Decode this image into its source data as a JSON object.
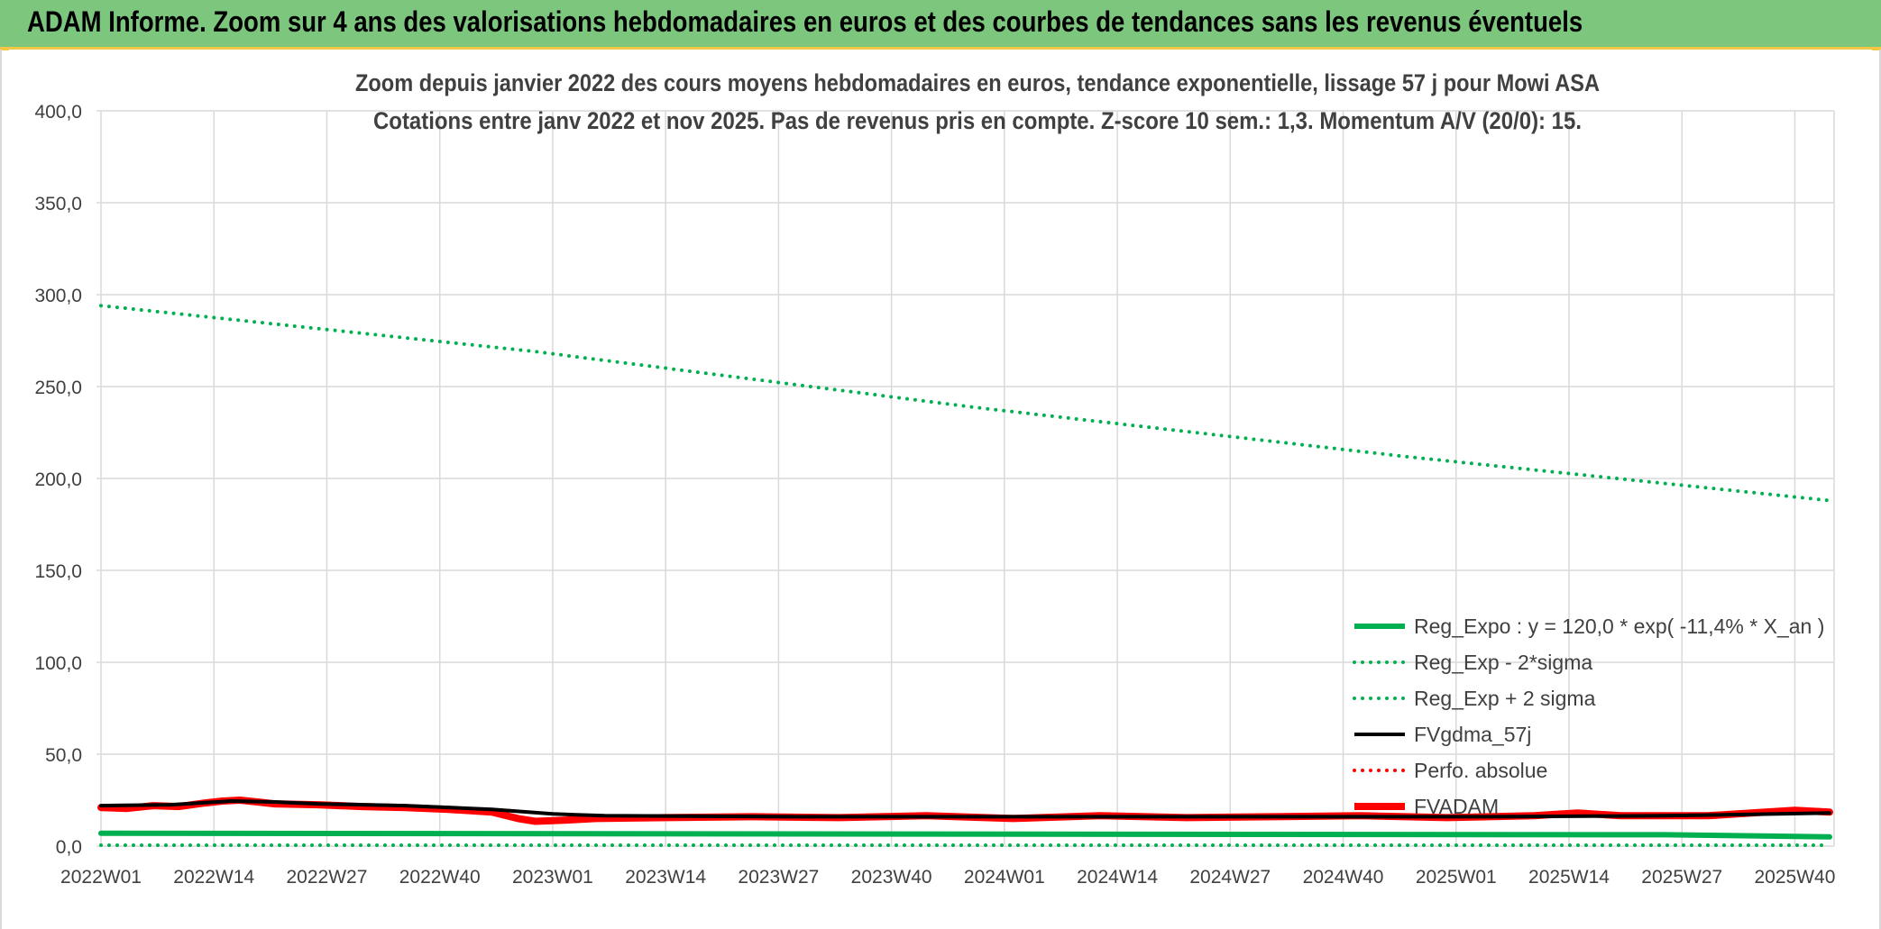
{
  "banner": {
    "title": "ADAM Informe. Zoom sur 4 ans des valorisations hebdomadaires en euros et des courbes de tendances sans les revenus éventuels"
  },
  "colors": {
    "banner_bg": "#7dc67e",
    "green": "#00b050",
    "black": "#000000",
    "red": "#ff0000",
    "grid": "#d9d9d9",
    "text": "#404040"
  },
  "chart_data": {
    "type": "line",
    "title": "Zoom depuis janvier 2022 des cours moyens hebdomadaires en euros, tendance exponentielle, lissage 57 j pour Mowi ASA",
    "subtitle": "Cotations entre janv 2022 et nov 2025. Pas de revenus pris en compte. Z-score 10 sem.: 1,3. Momentum A/V (20/0): 15.",
    "xlabel": "",
    "ylabel": "",
    "ylim": [
      0,
      400
    ],
    "yticks": [
      "0,0",
      "50,0",
      "100,0",
      "150,0",
      "200,0",
      "250,0",
      "300,0",
      "350,0",
      "400,0"
    ],
    "xtick_labels": [
      "2022W01",
      "2022W14",
      "2022W27",
      "2022W40",
      "2023W01",
      "2023W14",
      "2023W27",
      "2023W40",
      "2024W01",
      "2024W14",
      "2024W27",
      "2024W40",
      "2025W01",
      "2025W14",
      "2025W27",
      "2025W40"
    ],
    "n_weeks": 200,
    "legend_position": "bottom-right",
    "series": [
      {
        "name": "Reg_Expo : y = 120,0 * exp( -11,4% *  X_an )",
        "style": "solid",
        "color": "#00b050",
        "width": 6,
        "points": [
          [
            0,
            7.0
          ],
          [
            180,
            6.2
          ],
          [
            199,
            5.0
          ]
        ]
      },
      {
        "name": "Reg_Exp - 2*sigma",
        "style": "dotted",
        "color": "#00b050",
        "width": 4,
        "points": [
          [
            0,
            0.5
          ],
          [
            199,
            0.5
          ]
        ]
      },
      {
        "name": "Reg_Exp + 2 sigma",
        "style": "dotted",
        "color": "#00b050",
        "width": 4,
        "points": [
          [
            0,
            294
          ],
          [
            50,
            269
          ],
          [
            100,
            239
          ],
          [
            150,
            212
          ],
          [
            199,
            188
          ]
        ]
      },
      {
        "name": "FVgdma_57j",
        "style": "solid",
        "color": "#000000",
        "width": 4,
        "points": [
          [
            0,
            22
          ],
          [
            8,
            22.5
          ],
          [
            15,
            24.5
          ],
          [
            20,
            24
          ],
          [
            25,
            23
          ],
          [
            35,
            22
          ],
          [
            45,
            20
          ],
          [
            52,
            17.5
          ],
          [
            58,
            16.5
          ],
          [
            80,
            16
          ],
          [
            120,
            16
          ],
          [
            160,
            16
          ],
          [
            180,
            16.5
          ],
          [
            199,
            18
          ]
        ]
      },
      {
        "name": "Perfo. absolue",
        "style": "dotted",
        "color": "#ff0000",
        "width": 4,
        "points": []
      },
      {
        "name": "FVADAM",
        "style": "solid",
        "color": "#ff0000",
        "width": 8,
        "points": [
          [
            0,
            21
          ],
          [
            3,
            20.5
          ],
          [
            6,
            22
          ],
          [
            9,
            21.5
          ],
          [
            12,
            23.5
          ],
          [
            14,
            24.5
          ],
          [
            16,
            25
          ],
          [
            18,
            24
          ],
          [
            20,
            23
          ],
          [
            25,
            22.5
          ],
          [
            30,
            21.5
          ],
          [
            35,
            21
          ],
          [
            40,
            20
          ],
          [
            45,
            18.5
          ],
          [
            48,
            15
          ],
          [
            50,
            13.5
          ],
          [
            53,
            14
          ],
          [
            57,
            15
          ],
          [
            65,
            15.5
          ],
          [
            75,
            16
          ],
          [
            85,
            15.5
          ],
          [
            95,
            16.5
          ],
          [
            105,
            15
          ],
          [
            115,
            16.5
          ],
          [
            125,
            15.5
          ],
          [
            135,
            16
          ],
          [
            145,
            16.5
          ],
          [
            155,
            15.5
          ],
          [
            165,
            16.5
          ],
          [
            170,
            18
          ],
          [
            175,
            16.5
          ],
          [
            185,
            16.5
          ],
          [
            190,
            18
          ],
          [
            195,
            19.5
          ],
          [
            199,
            18.5
          ]
        ]
      }
    ]
  }
}
